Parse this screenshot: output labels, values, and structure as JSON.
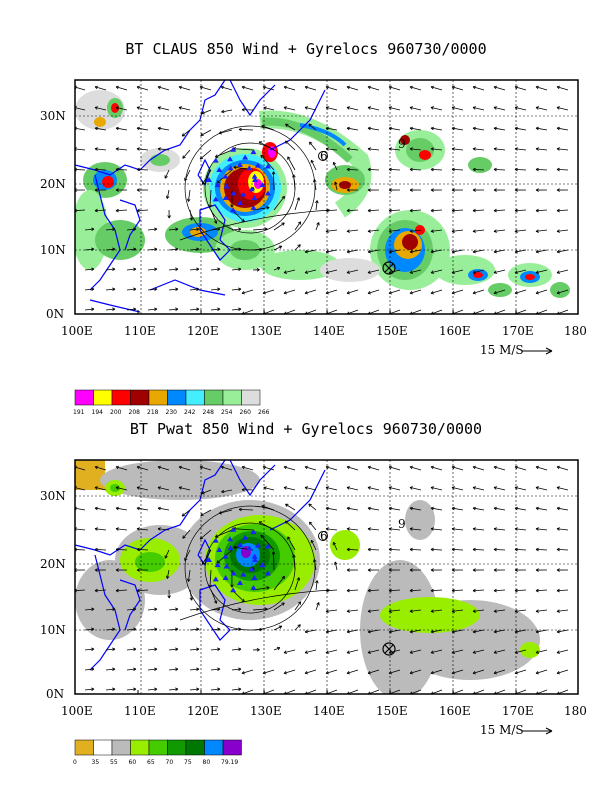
{
  "panels": [
    {
      "title": "BT CLAUS 850 Wind + Gyrelocs 960730/0000",
      "lon_labels": [
        "100E",
        "110E",
        "120E",
        "130E",
        "140E",
        "150E",
        "160E",
        "170E",
        "180"
      ],
      "lat_labels": [
        "30N",
        "20N",
        "10N",
        "0N"
      ],
      "vector_ref": "15 M/S",
      "legend_colors": [
        "#ff00ff",
        "#ffff00",
        "#ff0000",
        "#a00000",
        "#e8a800",
        "#0088ff",
        "#44eeff",
        "#66cc66",
        "#99ee99",
        "#dddddd"
      ],
      "legend_values": [
        "191",
        "194",
        "200",
        "208",
        "218",
        "230",
        "242",
        "248",
        "254",
        "260",
        "266"
      ]
    },
    {
      "title": "BT Pwat 850 Wind + Gyrelocs 960730/0000",
      "lon_labels": [
        "100E",
        "110E",
        "120E",
        "130E",
        "140E",
        "150E",
        "160E",
        "170E",
        "180"
      ],
      "lat_labels": [
        "30N",
        "20N",
        "10N",
        "0N"
      ],
      "vector_ref": "15 M/S",
      "legend_colors": [
        "#e0b020",
        "#ffffff",
        "#bbbbbb",
        "#99ee00",
        "#44cc00",
        "#119900",
        "#007700",
        "#0088ff",
        "#8800cc"
      ],
      "legend_values": [
        "0",
        "35",
        "55",
        "60",
        "65",
        "70",
        "75",
        "80",
        "79.19"
      ]
    }
  ],
  "gyre_markers": [
    "6",
    "9"
  ]
}
